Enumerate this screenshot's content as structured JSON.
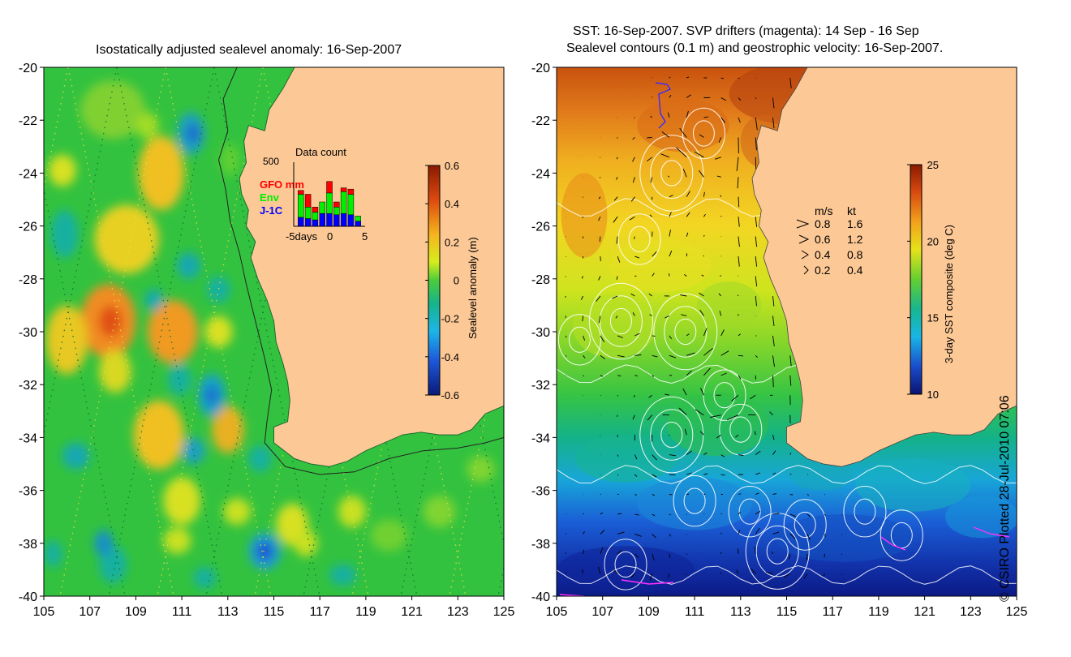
{
  "left_title": "Isostatically adjusted sealevel anomaly: 16-Sep-2007",
  "right_title_line1": "SST: 16-Sep-2007. SVP drifters (magenta): 14 Sep - 16 Sep",
  "right_title_line2": "Sealevel contours (0.1 m) and geostrophic velocity: 16-Sep-2007.",
  "credit": "© CSIRO Plotted 28-Jul-2010 07:06",
  "axes": {
    "lon_ticks": [
      "105",
      "107",
      "109",
      "111",
      "113",
      "115",
      "117",
      "119",
      "121",
      "123",
      "125"
    ],
    "lat_ticks": [
      "-20",
      "-22",
      "-24",
      "-26",
      "-28",
      "-30",
      "-32",
      "-34",
      "-36",
      "-38",
      "-40"
    ],
    "lon_range": [
      105,
      125
    ],
    "lat_range": [
      -40,
      -20
    ]
  },
  "sla_colorbar": {
    "label": "Sealevel anomaly (m)",
    "ticks": [
      "0.6",
      "0.4",
      "0.2",
      "0",
      "-0.2",
      "-0.4",
      "-0.6"
    ],
    "range": [
      -0.6,
      0.6
    ]
  },
  "sst_colorbar": {
    "label": "3-day SST composite (deg C)",
    "ticks": [
      "25",
      "20",
      "15",
      "10"
    ],
    "range": [
      10,
      25
    ]
  },
  "data_count": {
    "title": "Data count",
    "ymax_label": "500",
    "x_labels": [
      "-5days",
      "0",
      "5"
    ],
    "legend": [
      {
        "name": "GFO mm",
        "color": "#ff0000"
      },
      {
        "name": "Env",
        "color": "#00ee00"
      },
      {
        "name": "J-1C",
        "color": "#0000ff"
      }
    ],
    "bars": [
      {
        "day": -4,
        "jc": 70,
        "env": 180,
        "gfo": 30
      },
      {
        "day": -3,
        "jc": 60,
        "env": 90,
        "gfo": 100
      },
      {
        "day": -2,
        "jc": 50,
        "env": 60,
        "gfo": 40
      },
      {
        "day": -1,
        "jc": 100,
        "env": 90,
        "gfo": 0
      },
      {
        "day": 0,
        "jc": 100,
        "env": 160,
        "gfo": 90
      },
      {
        "day": 1,
        "jc": 90,
        "env": 60,
        "gfo": 40
      },
      {
        "day": 2,
        "jc": 100,
        "env": 170,
        "gfo": 30
      },
      {
        "day": 3,
        "jc": 90,
        "env": 160,
        "gfo": 40
      },
      {
        "day": 4,
        "jc": 40,
        "env": 40,
        "gfo": 0
      }
    ]
  },
  "velocity_legend": {
    "header": [
      "m/s",
      "kt"
    ],
    "rows": [
      {
        "ms": "0.8",
        "kt": "1.6"
      },
      {
        "ms": "0.6",
        "kt": "1.2"
      },
      {
        "ms": "0.4",
        "kt": "0.8"
      },
      {
        "ms": "0.2",
        "kt": "0.4"
      }
    ]
  },
  "colors": {
    "land": "#fcc895",
    "sla_background": "#33c23f",
    "contour": "#ffffff"
  }
}
